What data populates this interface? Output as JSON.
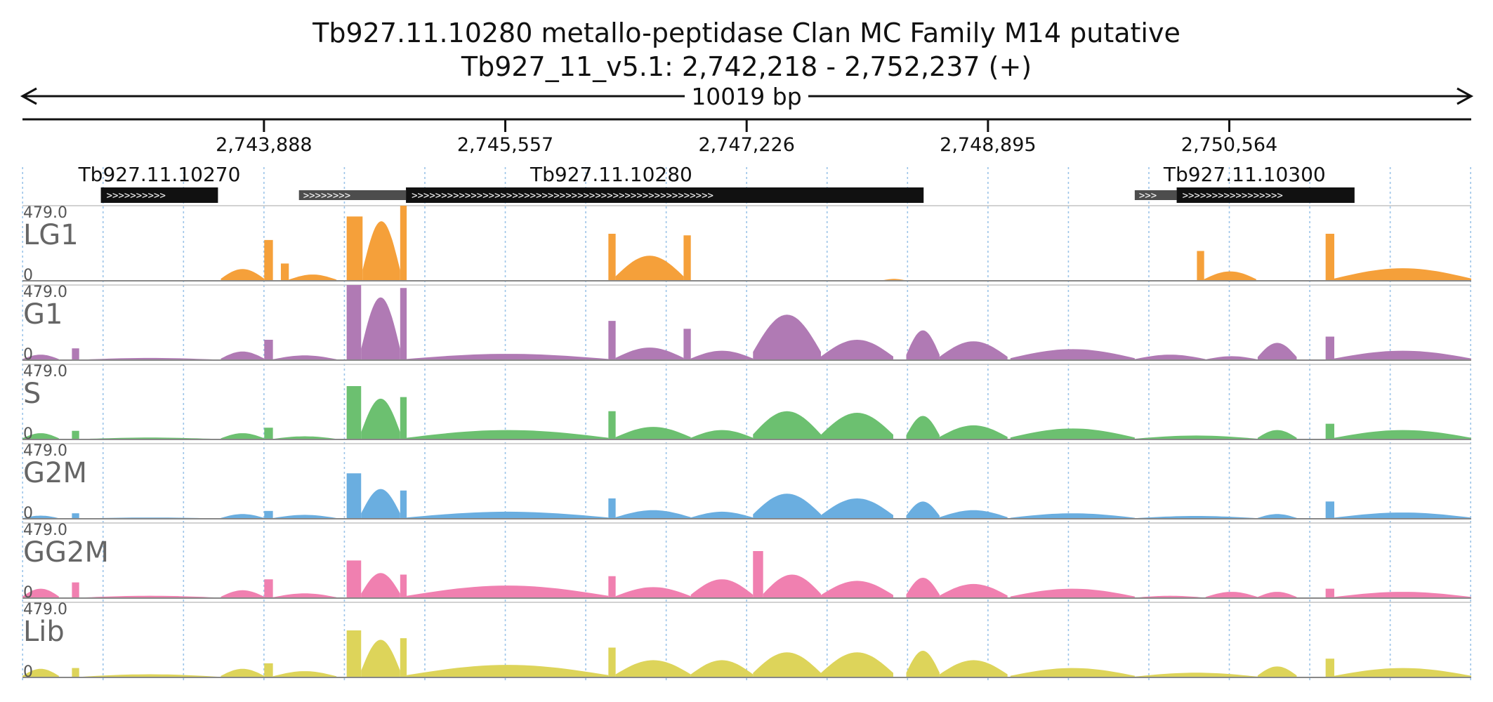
{
  "chart_data": {
    "type": "area",
    "title": "Tb927.11.10280  metallo-peptidase  Clan MC  Family M14  putative",
    "subtitle": "Tb927_11_v5.1: 2,742,218 - 2,752,237 (+)",
    "span_label": "10019 bp",
    "region": {
      "chrom": "Tb927_11_v5.1",
      "start": 2742218,
      "end": 2752237,
      "strand": "+"
    },
    "x_ticks": [
      {
        "pos": 2743888,
        "label": "2,743,888"
      },
      {
        "pos": 2745557,
        "label": "2,745,557"
      },
      {
        "pos": 2747226,
        "label": "2,747,226"
      },
      {
        "pos": 2748895,
        "label": "2,748,895"
      },
      {
        "pos": 2750564,
        "label": "2,750,564"
      }
    ],
    "grid": true,
    "genes": [
      {
        "name": "Tb927.11.10270",
        "start": 2742760,
        "end": 2743570,
        "utr5_start": null,
        "strand": "+"
      },
      {
        "name": "Tb927.11.10280",
        "start": 2744870,
        "end": 2748450,
        "utr5_start": 2744130,
        "strand": "+"
      },
      {
        "name": "Tb927.11.10300",
        "start": 2750200,
        "end": 2751430,
        "utr5_start": 2749910,
        "strand": "+"
      }
    ],
    "tracks": [
      {
        "name": "LG1",
        "max_label": "479.0",
        "min_label": "0",
        "color": "#f5a03a",
        "segments": [
          {
            "start": 2743590,
            "end": 2743890,
            "peak": 75,
            "shape": "hump"
          },
          {
            "start": 2743890,
            "end": 2743950,
            "peak": 260,
            "shape": "flat"
          },
          {
            "start": 2744005,
            "end": 2744060,
            "peak": 110,
            "shape": "flat"
          },
          {
            "start": 2744060,
            "end": 2744390,
            "peak": 40,
            "shape": "hump"
          },
          {
            "start": 2744460,
            "end": 2744570,
            "peak": 410,
            "shape": "flat"
          },
          {
            "start": 2744570,
            "end": 2744830,
            "peak": 380,
            "shape": "hump"
          },
          {
            "start": 2744830,
            "end": 2744875,
            "peak": 479,
            "shape": "flat"
          },
          {
            "start": 2746270,
            "end": 2746320,
            "peak": 300,
            "shape": "flat"
          },
          {
            "start": 2746320,
            "end": 2746790,
            "peak": 160,
            "shape": "hump"
          },
          {
            "start": 2746790,
            "end": 2746840,
            "peak": 290,
            "shape": "flat"
          },
          {
            "start": 2748160,
            "end": 2748330,
            "peak": 12,
            "shape": "hump"
          },
          {
            "start": 2750340,
            "end": 2750390,
            "peak": 190,
            "shape": "flat"
          },
          {
            "start": 2750390,
            "end": 2750750,
            "peak": 60,
            "shape": "hump"
          },
          {
            "start": 2751230,
            "end": 2751290,
            "peak": 300,
            "shape": "flat"
          },
          {
            "start": 2751290,
            "end": 2752237,
            "peak": 80,
            "shape": "hump"
          }
        ]
      },
      {
        "name": "G1",
        "max_label": "479.0",
        "min_label": "0",
        "color": "#b07ab4",
        "segments": [
          {
            "start": 2742218,
            "end": 2742470,
            "peak": 35,
            "shape": "hump"
          },
          {
            "start": 2742560,
            "end": 2742610,
            "peak": 75,
            "shape": "flat"
          },
          {
            "start": 2742610,
            "end": 2743590,
            "peak": 14,
            "shape": "hump"
          },
          {
            "start": 2743590,
            "end": 2743890,
            "peak": 55,
            "shape": "hump"
          },
          {
            "start": 2743890,
            "end": 2743950,
            "peak": 130,
            "shape": "flat"
          },
          {
            "start": 2743950,
            "end": 2744390,
            "peak": 30,
            "shape": "hump"
          },
          {
            "start": 2744460,
            "end": 2744560,
            "peak": 479,
            "shape": "flat"
          },
          {
            "start": 2744560,
            "end": 2744830,
            "peak": 400,
            "shape": "hump"
          },
          {
            "start": 2744830,
            "end": 2744875,
            "peak": 460,
            "shape": "flat"
          },
          {
            "start": 2744875,
            "end": 2746270,
            "peak": 40,
            "shape": "hump"
          },
          {
            "start": 2746270,
            "end": 2746320,
            "peak": 250,
            "shape": "flat"
          },
          {
            "start": 2746320,
            "end": 2746790,
            "peak": 80,
            "shape": "hump"
          },
          {
            "start": 2746790,
            "end": 2746840,
            "peak": 200,
            "shape": "flat"
          },
          {
            "start": 2746840,
            "end": 2747270,
            "peak": 60,
            "shape": "hump"
          },
          {
            "start": 2747270,
            "end": 2747740,
            "peak": 290,
            "shape": "hump"
          },
          {
            "start": 2747740,
            "end": 2748240,
            "peak": 130,
            "shape": "hump"
          },
          {
            "start": 2748330,
            "end": 2748560,
            "peak": 190,
            "shape": "hump"
          },
          {
            "start": 2748560,
            "end": 2749030,
            "peak": 120,
            "shape": "hump"
          },
          {
            "start": 2749050,
            "end": 2749910,
            "peak": 70,
            "shape": "hump"
          },
          {
            "start": 2749910,
            "end": 2750400,
            "peak": 35,
            "shape": "hump"
          },
          {
            "start": 2750400,
            "end": 2750760,
            "peak": 25,
            "shape": "hump"
          },
          {
            "start": 2750760,
            "end": 2751030,
            "peak": 110,
            "shape": "hump"
          },
          {
            "start": 2751230,
            "end": 2751290,
            "peak": 150,
            "shape": "flat"
          },
          {
            "start": 2751290,
            "end": 2752237,
            "peak": 60,
            "shape": "hump"
          }
        ]
      },
      {
        "name": "S",
        "max_label": "479.0",
        "min_label": "0",
        "color": "#6cc070",
        "segments": [
          {
            "start": 2742218,
            "end": 2742470,
            "peak": 40,
            "shape": "hump"
          },
          {
            "start": 2742560,
            "end": 2742610,
            "peak": 55,
            "shape": "flat"
          },
          {
            "start": 2742610,
            "end": 2743590,
            "peak": 12,
            "shape": "hump"
          },
          {
            "start": 2743590,
            "end": 2743890,
            "peak": 40,
            "shape": "hump"
          },
          {
            "start": 2743890,
            "end": 2743950,
            "peak": 75,
            "shape": "flat"
          },
          {
            "start": 2743950,
            "end": 2744390,
            "peak": 20,
            "shape": "hump"
          },
          {
            "start": 2744460,
            "end": 2744560,
            "peak": 340,
            "shape": "flat"
          },
          {
            "start": 2744560,
            "end": 2744830,
            "peak": 260,
            "shape": "hump"
          },
          {
            "start": 2744830,
            "end": 2744875,
            "peak": 270,
            "shape": "flat"
          },
          {
            "start": 2744875,
            "end": 2746270,
            "peak": 60,
            "shape": "hump"
          },
          {
            "start": 2746270,
            "end": 2746320,
            "peak": 180,
            "shape": "flat"
          },
          {
            "start": 2746320,
            "end": 2746840,
            "peak": 80,
            "shape": "hump"
          },
          {
            "start": 2746840,
            "end": 2747270,
            "peak": 60,
            "shape": "hump"
          },
          {
            "start": 2747270,
            "end": 2747740,
            "peak": 180,
            "shape": "hump"
          },
          {
            "start": 2747740,
            "end": 2748240,
            "peak": 170,
            "shape": "hump"
          },
          {
            "start": 2748330,
            "end": 2748560,
            "peak": 150,
            "shape": "hump"
          },
          {
            "start": 2748560,
            "end": 2749030,
            "peak": 90,
            "shape": "hump"
          },
          {
            "start": 2749050,
            "end": 2749910,
            "peak": 70,
            "shape": "hump"
          },
          {
            "start": 2749910,
            "end": 2750760,
            "peak": 25,
            "shape": "hump"
          },
          {
            "start": 2750760,
            "end": 2751030,
            "peak": 60,
            "shape": "hump"
          },
          {
            "start": 2751230,
            "end": 2751290,
            "peak": 100,
            "shape": "flat"
          },
          {
            "start": 2751290,
            "end": 2752237,
            "peak": 60,
            "shape": "hump"
          }
        ]
      },
      {
        "name": "G2M",
        "max_label": "479.0",
        "min_label": "0",
        "color": "#6aaee0",
        "segments": [
          {
            "start": 2742218,
            "end": 2742470,
            "peak": 20,
            "shape": "hump"
          },
          {
            "start": 2742560,
            "end": 2742610,
            "peak": 35,
            "shape": "flat"
          },
          {
            "start": 2742610,
            "end": 2743590,
            "peak": 8,
            "shape": "hump"
          },
          {
            "start": 2743590,
            "end": 2743890,
            "peak": 30,
            "shape": "hump"
          },
          {
            "start": 2743890,
            "end": 2743950,
            "peak": 50,
            "shape": "flat"
          },
          {
            "start": 2743950,
            "end": 2744390,
            "peak": 25,
            "shape": "hump"
          },
          {
            "start": 2744460,
            "end": 2744560,
            "peak": 290,
            "shape": "flat"
          },
          {
            "start": 2744560,
            "end": 2744830,
            "peak": 190,
            "shape": "hump"
          },
          {
            "start": 2744830,
            "end": 2744875,
            "peak": 180,
            "shape": "flat"
          },
          {
            "start": 2744875,
            "end": 2746270,
            "peak": 45,
            "shape": "hump"
          },
          {
            "start": 2746270,
            "end": 2746320,
            "peak": 130,
            "shape": "flat"
          },
          {
            "start": 2746320,
            "end": 2746840,
            "peak": 55,
            "shape": "hump"
          },
          {
            "start": 2746840,
            "end": 2747270,
            "peak": 45,
            "shape": "hump"
          },
          {
            "start": 2747270,
            "end": 2747740,
            "peak": 160,
            "shape": "hump"
          },
          {
            "start": 2747740,
            "end": 2748240,
            "peak": 130,
            "shape": "hump"
          },
          {
            "start": 2748330,
            "end": 2748560,
            "peak": 110,
            "shape": "hump"
          },
          {
            "start": 2748560,
            "end": 2749030,
            "peak": 55,
            "shape": "hump"
          },
          {
            "start": 2749050,
            "end": 2749910,
            "peak": 35,
            "shape": "hump"
          },
          {
            "start": 2749910,
            "end": 2750760,
            "peak": 18,
            "shape": "hump"
          },
          {
            "start": 2750760,
            "end": 2751030,
            "peak": 30,
            "shape": "hump"
          },
          {
            "start": 2751230,
            "end": 2751290,
            "peak": 110,
            "shape": "flat"
          },
          {
            "start": 2751290,
            "end": 2752237,
            "peak": 40,
            "shape": "hump"
          }
        ]
      },
      {
        "name": "GG2M",
        "max_label": "479.0",
        "min_label": "0",
        "color": "#f080b0",
        "segments": [
          {
            "start": 2742218,
            "end": 2742470,
            "peak": 60,
            "shape": "hump"
          },
          {
            "start": 2742560,
            "end": 2742610,
            "peak": 100,
            "shape": "flat"
          },
          {
            "start": 2742610,
            "end": 2743590,
            "peak": 15,
            "shape": "hump"
          },
          {
            "start": 2743590,
            "end": 2743890,
            "peak": 50,
            "shape": "hump"
          },
          {
            "start": 2743890,
            "end": 2743950,
            "peak": 120,
            "shape": "flat"
          },
          {
            "start": 2743950,
            "end": 2744390,
            "peak": 30,
            "shape": "hump"
          },
          {
            "start": 2744460,
            "end": 2744560,
            "peak": 240,
            "shape": "flat"
          },
          {
            "start": 2744560,
            "end": 2744830,
            "peak": 160,
            "shape": "hump"
          },
          {
            "start": 2744830,
            "end": 2744875,
            "peak": 150,
            "shape": "flat"
          },
          {
            "start": 2744875,
            "end": 2746270,
            "peak": 80,
            "shape": "hump"
          },
          {
            "start": 2746270,
            "end": 2746320,
            "peak": 140,
            "shape": "flat"
          },
          {
            "start": 2746320,
            "end": 2746840,
            "peak": 70,
            "shape": "hump"
          },
          {
            "start": 2746840,
            "end": 2747270,
            "peak": 120,
            "shape": "hump"
          },
          {
            "start": 2747270,
            "end": 2747340,
            "peak": 300,
            "shape": "flat"
          },
          {
            "start": 2747340,
            "end": 2747740,
            "peak": 150,
            "shape": "hump"
          },
          {
            "start": 2747740,
            "end": 2748240,
            "peak": 110,
            "shape": "hump"
          },
          {
            "start": 2748330,
            "end": 2748560,
            "peak": 130,
            "shape": "hump"
          },
          {
            "start": 2748560,
            "end": 2749030,
            "peak": 90,
            "shape": "hump"
          },
          {
            "start": 2749050,
            "end": 2749910,
            "peak": 60,
            "shape": "hump"
          },
          {
            "start": 2749910,
            "end": 2750400,
            "peak": 15,
            "shape": "hump"
          },
          {
            "start": 2750400,
            "end": 2750760,
            "peak": 40,
            "shape": "hump"
          },
          {
            "start": 2750760,
            "end": 2751030,
            "peak": 40,
            "shape": "hump"
          },
          {
            "start": 2751230,
            "end": 2751290,
            "peak": 60,
            "shape": "flat"
          },
          {
            "start": 2751290,
            "end": 2752237,
            "peak": 40,
            "shape": "hump"
          }
        ]
      },
      {
        "name": "Lib",
        "max_label": "479.0",
        "min_label": "0",
        "color": "#ddd45a",
        "segments": [
          {
            "start": 2742218,
            "end": 2742470,
            "peak": 55,
            "shape": "hump"
          },
          {
            "start": 2742560,
            "end": 2742610,
            "peak": 60,
            "shape": "flat"
          },
          {
            "start": 2742610,
            "end": 2743590,
            "peak": 20,
            "shape": "hump"
          },
          {
            "start": 2743590,
            "end": 2743890,
            "peak": 55,
            "shape": "hump"
          },
          {
            "start": 2743890,
            "end": 2743950,
            "peak": 90,
            "shape": "flat"
          },
          {
            "start": 2743950,
            "end": 2744390,
            "peak": 40,
            "shape": "hump"
          },
          {
            "start": 2744460,
            "end": 2744560,
            "peak": 300,
            "shape": "flat"
          },
          {
            "start": 2744560,
            "end": 2744830,
            "peak": 240,
            "shape": "hump"
          },
          {
            "start": 2744830,
            "end": 2744875,
            "peak": 250,
            "shape": "flat"
          },
          {
            "start": 2744875,
            "end": 2746270,
            "peak": 80,
            "shape": "hump"
          },
          {
            "start": 2746270,
            "end": 2746320,
            "peak": 190,
            "shape": "flat"
          },
          {
            "start": 2746320,
            "end": 2746840,
            "peak": 110,
            "shape": "hump"
          },
          {
            "start": 2746840,
            "end": 2747270,
            "peak": 110,
            "shape": "hump"
          },
          {
            "start": 2747270,
            "end": 2747740,
            "peak": 160,
            "shape": "hump"
          },
          {
            "start": 2747740,
            "end": 2748240,
            "peak": 160,
            "shape": "hump"
          },
          {
            "start": 2748330,
            "end": 2748560,
            "peak": 170,
            "shape": "hump"
          },
          {
            "start": 2748560,
            "end": 2749030,
            "peak": 110,
            "shape": "hump"
          },
          {
            "start": 2749050,
            "end": 2749910,
            "peak": 60,
            "shape": "hump"
          },
          {
            "start": 2749910,
            "end": 2750760,
            "peak": 30,
            "shape": "hump"
          },
          {
            "start": 2750760,
            "end": 2751030,
            "peak": 70,
            "shape": "hump"
          },
          {
            "start": 2751230,
            "end": 2751290,
            "peak": 120,
            "shape": "flat"
          },
          {
            "start": 2751290,
            "end": 2752237,
            "peak": 60,
            "shape": "hump"
          }
        ]
      }
    ]
  }
}
